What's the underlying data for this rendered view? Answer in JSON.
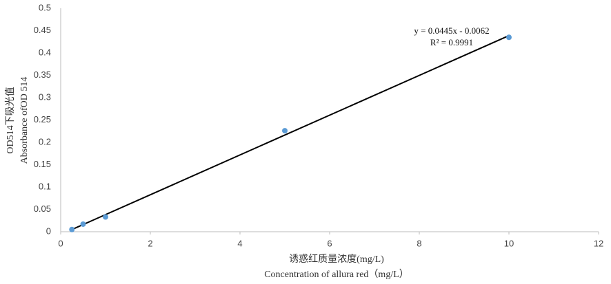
{
  "chart_data": {
    "type": "scatter",
    "x_label_lines": [
      "诱惑红质量浓度(mg/L)",
      "Concentration of allura red（mg/L）"
    ],
    "y_label_lines": [
      "OD514下吸光值",
      "Absorbance ofOD 514"
    ],
    "series": [
      {
        "color": "#5b9bd5",
        "x": [
          0.25,
          0.5,
          1,
          5,
          10
        ],
        "values": [
          0.005,
          0.017,
          0.033,
          0.226,
          0.435
        ]
      }
    ],
    "trendline": {
      "color": "#000000",
      "x": [
        0.25,
        10
      ],
      "y": [
        0.0049,
        0.4388
      ]
    },
    "annotations": [
      "y = 0.0445x - 0.0062",
      "R² = 0.9991"
    ],
    "xlim": [
      0,
      12
    ],
    "xticks": [
      0,
      2,
      4,
      6,
      8,
      10,
      12
    ],
    "ylim": [
      0,
      0.5
    ],
    "yticks": [
      0,
      0.05,
      0.1,
      0.15,
      0.2,
      0.25,
      0.3,
      0.35,
      0.4,
      0.45,
      0.5
    ],
    "grid": false
  }
}
